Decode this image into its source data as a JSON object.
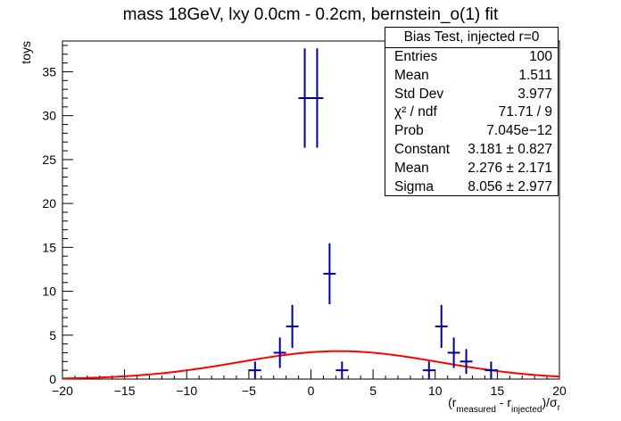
{
  "chart_data": {
    "type": "histogram",
    "title": "mass 18GeV, lxy 0.0cm - 0.2cm, bernstein_o(1) fit",
    "ylabel": "toys",
    "xlabel_parts": {
      "open": "(r",
      "sub1": "measured",
      "minus": " - r",
      "sub2": "injected",
      "close": ")/σ",
      "sub3": "r"
    },
    "xlim": [
      -20,
      20
    ],
    "ylim": [
      0,
      38.5
    ],
    "x_ticks": [
      -20,
      -15,
      -10,
      -5,
      0,
      5,
      10,
      15,
      20
    ],
    "y_ticks": [
      0,
      5,
      10,
      15,
      20,
      25,
      30,
      35
    ],
    "bin_width": 1,
    "series": [
      {
        "values_x": [
          -4.5,
          -2.5,
          -1.5,
          -0.5,
          0.5,
          1.5,
          2.5,
          9.5,
          10.5,
          11.5,
          12.5,
          14.5
        ],
        "values_y": [
          1,
          3,
          6,
          32,
          32,
          12,
          1,
          1,
          6,
          3,
          2,
          1
        ],
        "color": "#000099"
      }
    ],
    "fit": {
      "type": "gaus",
      "constant": 3.181,
      "mean": 2.276,
      "sigma": 8.056,
      "color": "#ff0000"
    }
  },
  "stats_box": {
    "title": "Bias Test, injected r=0",
    "rows": [
      {
        "label": "Entries",
        "value": "100"
      },
      {
        "label": "Mean",
        "value": "1.511"
      },
      {
        "label": "Std Dev",
        "value": "3.977"
      },
      {
        "label": "χ² / ndf",
        "value": "71.71 / 9"
      },
      {
        "label": "Prob",
        "value": "7.045e−12"
      },
      {
        "label": "Constant",
        "value": "3.181 ± 0.827"
      },
      {
        "label": "Mean",
        "value": "2.276 ± 2.171"
      },
      {
        "label": "Sigma",
        "value": "8.056 ± 2.977"
      }
    ]
  }
}
